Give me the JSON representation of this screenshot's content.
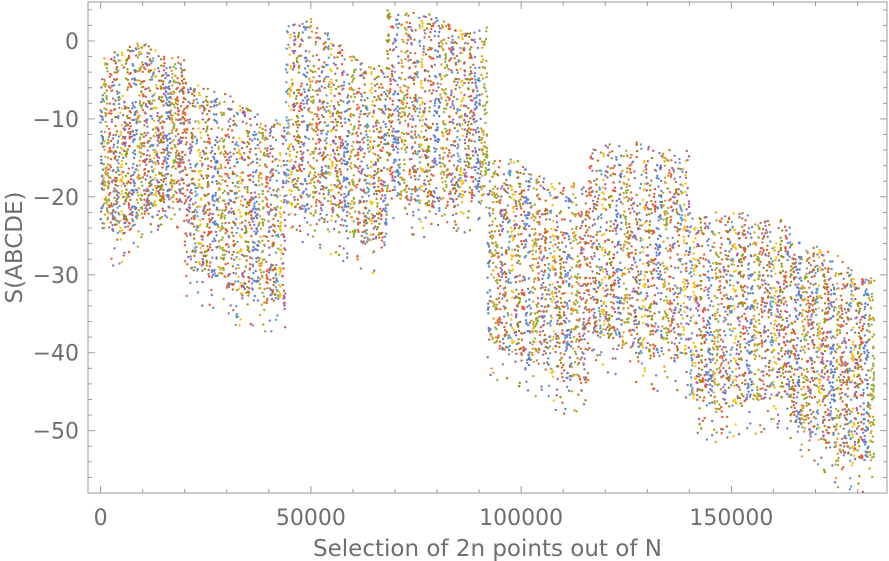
{
  "chart_data": {
    "type": "scatter",
    "title": "",
    "xlabel": "Selection of 2n points out of N",
    "ylabel": "S(ABCDE)",
    "xlim": [
      -3000,
      187000
    ],
    "ylim": [
      -58,
      5
    ],
    "x_ticks": [
      0,
      50000,
      100000,
      150000
    ],
    "x_tick_labels": [
      "0",
      "50000",
      "100000",
      "150000"
    ],
    "y_ticks": [
      0,
      -10,
      -20,
      -30,
      -40,
      -50
    ],
    "y_tick_labels": [
      "0",
      "−10",
      "−20",
      "−30",
      "−40",
      "−50"
    ],
    "grid": false,
    "legend": "none",
    "colors": [
      "#5e81b5",
      "#e19c24",
      "#8fb032",
      "#eb6235",
      "#8778b3",
      "#c56e1a",
      "#5d9ec7",
      "#ffbf00",
      "#a5609d",
      "#929600",
      "#e95536",
      "#6685d9"
    ],
    "series_groups": [
      {
        "x_start": 0,
        "x_end": 20000,
        "y_top": [
          -2,
          -1,
          0,
          -2
        ],
        "y_bottom": [
          -28,
          -30,
          -26,
          -24
        ]
      },
      {
        "x_start": 20000,
        "x_end": 44000,
        "y_top": [
          -5,
          -6,
          -7,
          -10
        ],
        "y_bottom": [
          -33,
          -35,
          -37,
          -38
        ]
      },
      {
        "x_start": 44000,
        "x_end": 68000,
        "y_top": [
          2,
          3,
          0,
          -3
        ],
        "y_bottom": [
          -25,
          -27,
          -28,
          -30
        ]
      },
      {
        "x_start": 68000,
        "x_end": 92000,
        "y_top": [
          4,
          4,
          3,
          2
        ],
        "y_bottom": [
          -24,
          -25,
          -26,
          -25
        ]
      },
      {
        "x_start": 92000,
        "x_end": 116000,
        "y_top": [
          -15,
          -15,
          -17,
          -18
        ],
        "y_bottom": [
          -43,
          -45,
          -46,
          -48
        ]
      },
      {
        "x_start": 116000,
        "x_end": 140000,
        "y_top": [
          -14,
          -13,
          -13,
          -14
        ],
        "y_bottom": [
          -42,
          -43,
          -45,
          -46
        ]
      },
      {
        "x_start": 140000,
        "x_end": 164000,
        "y_top": [
          -22,
          -22,
          -21,
          -23
        ],
        "y_bottom": [
          -50,
          -52,
          -51,
          -50
        ]
      },
      {
        "x_start": 164000,
        "x_end": 184000,
        "y_top": [
          -25,
          -26,
          -27,
          -30
        ],
        "y_bottom": [
          -53,
          -55,
          -57,
          -58
        ]
      }
    ]
  }
}
